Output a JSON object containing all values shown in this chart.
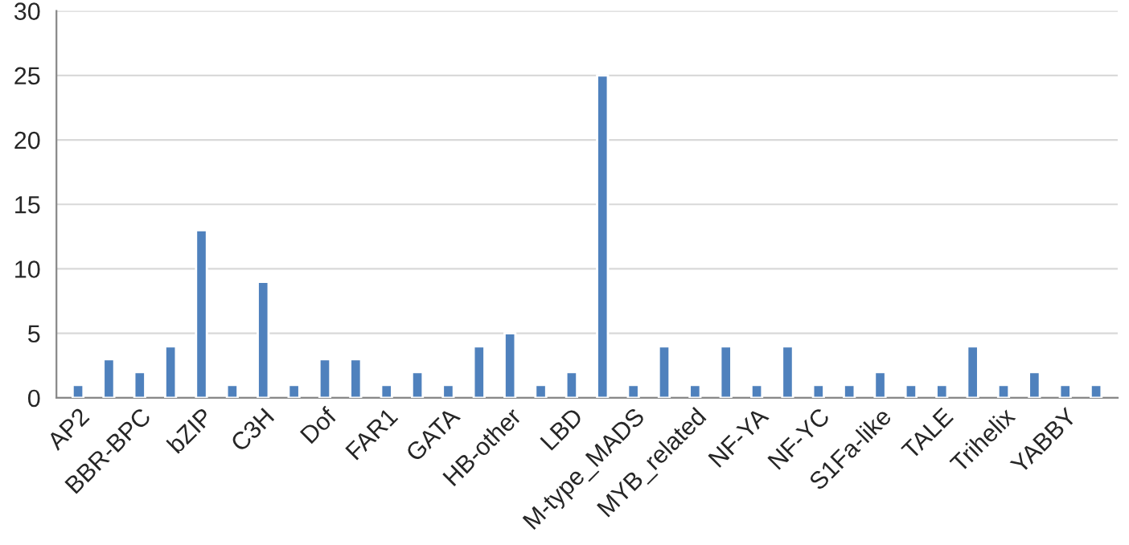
{
  "chart_data": {
    "type": "bar",
    "categories": [
      "AP2",
      null,
      "BBR-BPC",
      null,
      "bZIP",
      null,
      "C3H",
      null,
      "Dof",
      null,
      "FAR1",
      null,
      "GATA",
      null,
      "HB-other",
      null,
      "LBD",
      null,
      "M-type_MADS",
      null,
      "MYB_related",
      null,
      "NF-YA",
      null,
      "NF-YC",
      null,
      "S1Fa-like",
      null,
      "TALE",
      null,
      "Trihelix",
      null,
      "YABBY",
      null
    ],
    "values": [
      1,
      3,
      2,
      4,
      13,
      1,
      9,
      1,
      3,
      3,
      1,
      2,
      1,
      4,
      5,
      1,
      2,
      25,
      1,
      4,
      1,
      4,
      1,
      4,
      1,
      1,
      2,
      1,
      1,
      4,
      1,
      2,
      1,
      1
    ],
    "color": "#4f81bd",
    "ylim": [
      0,
      30
    ],
    "yticks": [
      0,
      5,
      10,
      15,
      20,
      25,
      30
    ],
    "grid": "y",
    "legend": false
  }
}
